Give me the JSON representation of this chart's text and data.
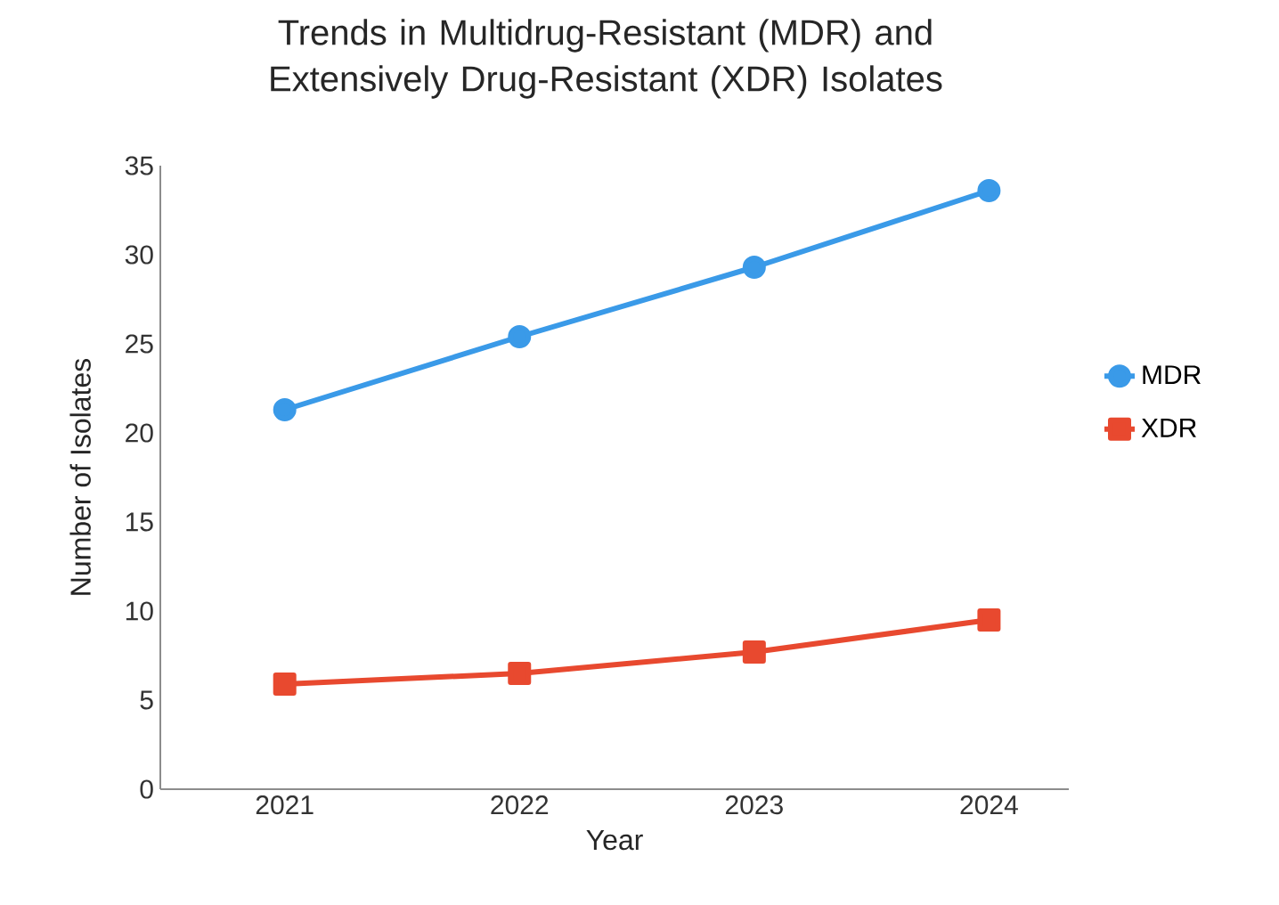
{
  "chart_data": {
    "type": "line",
    "title": "Trends in Multidrug-Resistant (MDR) and Extensively Drug-Resistant (XDR) Isolates",
    "xlabel": "Year",
    "ylabel": "Number of Isolates",
    "categories": [
      "2021",
      "2022",
      "2023",
      "2024"
    ],
    "series": [
      {
        "name": "MDR",
        "color": "#3a9ae8",
        "marker": "circle",
        "values": [
          21.3,
          25.4,
          29.3,
          33.6
        ]
      },
      {
        "name": "XDR",
        "color": "#e8492f",
        "marker": "square",
        "values": [
          5.9,
          6.5,
          7.7,
          9.5
        ]
      }
    ],
    "ylim": [
      0,
      35
    ],
    "yticks": [
      0,
      5,
      10,
      15,
      20,
      25,
      30,
      35
    ],
    "grid": false,
    "legend": "right",
    "line_style": "solid"
  }
}
